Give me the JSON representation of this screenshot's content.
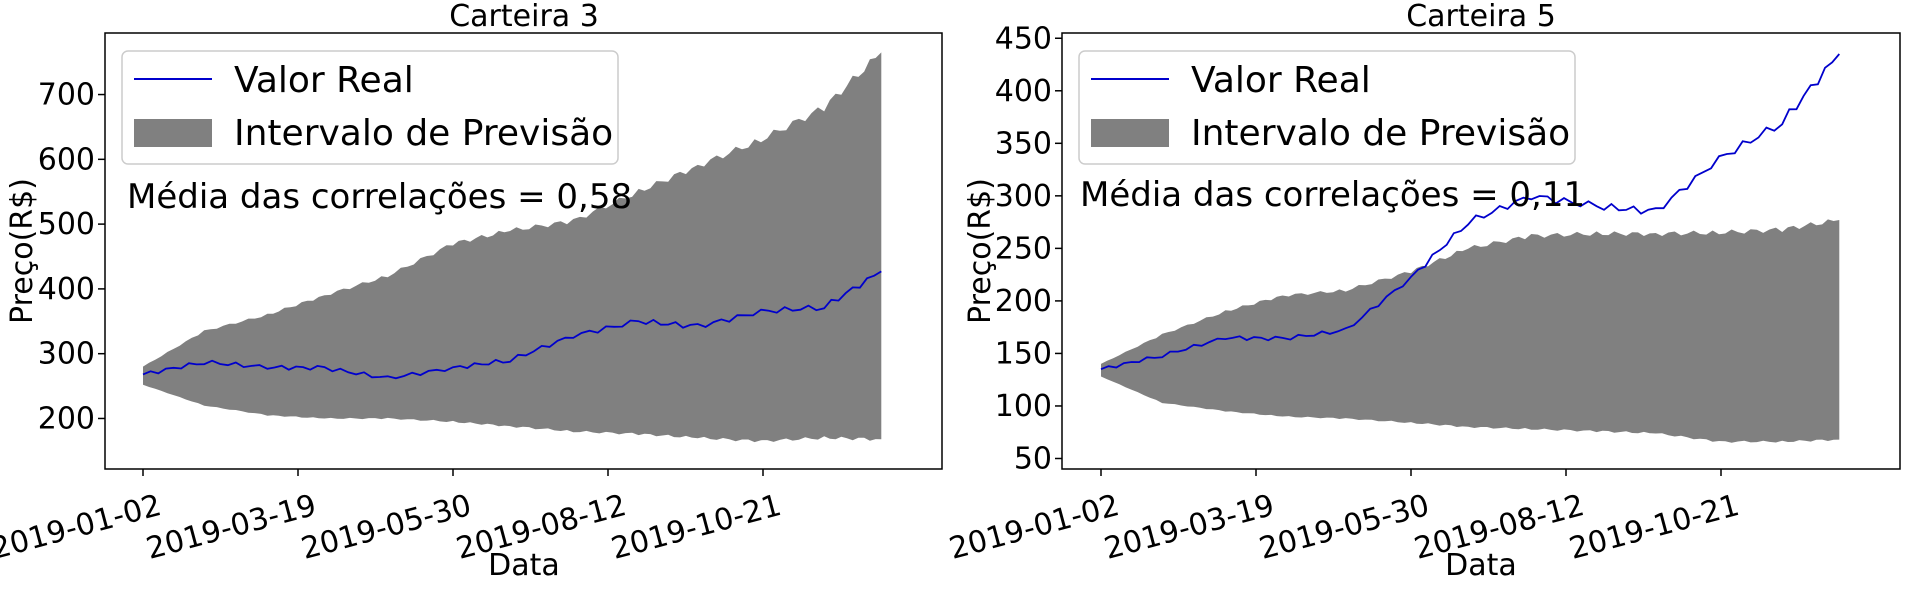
{
  "chart_data": [
    {
      "type": "line",
      "title": "Carteira 3",
      "xlabel": "Data",
      "ylabel": "Preço(R$)",
      "x_tick_labels": [
        "2019-01-02",
        "2019-03-19",
        "2019-05-30",
        "2019-08-12",
        "2019-10-21"
      ],
      "y_ticks": [
        200,
        300,
        400,
        500,
        600,
        700
      ],
      "ylim": [
        122,
        795
      ],
      "legend": {
        "placement": "upper-left",
        "entries": [
          "Valor Real",
          "Intervalo de Previsão"
        ]
      },
      "annotation": "Média das correlações = 0,58",
      "x": [
        "2019-01-02",
        "2019-02-01",
        "2019-03-04",
        "2019-04-01",
        "2019-05-02",
        "2019-06-03",
        "2019-07-01",
        "2019-08-01",
        "2019-09-02",
        "2019-10-01",
        "2019-11-01",
        "2019-12-02",
        "2019-12-30"
      ],
      "series": [
        {
          "name": "Valor Real",
          "kind": "line",
          "color": "#0000cc",
          "values": [
            268,
            287,
            279,
            278,
            262,
            278,
            290,
            328,
            350,
            342,
            365,
            372,
            427
          ]
        },
        {
          "name": "Intervalo de Previsão",
          "kind": "band",
          "color": "#808080",
          "upper": [
            280,
            335,
            360,
            390,
            420,
            470,
            490,
            505,
            550,
            590,
            630,
            680,
            765
          ],
          "lower": [
            252,
            220,
            205,
            200,
            200,
            195,
            188,
            180,
            176,
            170,
            165,
            170,
            168
          ]
        }
      ]
    },
    {
      "type": "line",
      "title": "Carteira 5",
      "xlabel": "Data",
      "ylabel": "Preço(R$)",
      "x_tick_labels": [
        "2019-01-02",
        "2019-03-19",
        "2019-05-30",
        "2019-08-12",
        "2019-10-21"
      ],
      "y_ticks": [
        50,
        100,
        150,
        200,
        250,
        300,
        350,
        400,
        450
      ],
      "ylim": [
        40,
        455
      ],
      "legend": {
        "placement": "upper-left",
        "entries": [
          "Valor Real",
          "Intervalo de Previsão"
        ]
      },
      "annotation": "Média das correlações = 0,11",
      "x": [
        "2019-01-02",
        "2019-02-01",
        "2019-03-04",
        "2019-04-01",
        "2019-05-02",
        "2019-06-03",
        "2019-07-01",
        "2019-08-01",
        "2019-09-02",
        "2019-10-01",
        "2019-11-01",
        "2019-12-02",
        "2019-12-30"
      ],
      "series": [
        {
          "name": "Valor Real",
          "kind": "line",
          "color": "#0000cc",
          "values": [
            135,
            148,
            165,
            164,
            172,
            222,
            275,
            300,
            290,
            285,
            335,
            370,
            435
          ]
        },
        {
          "name": "Intervalo de Previsão",
          "kind": "band",
          "color": "#808080",
          "upper": [
            140,
            168,
            190,
            205,
            210,
            228,
            250,
            262,
            264,
            264,
            265,
            268,
            277
          ]
        },
        {
          "kind": "band-lower",
          "lower": [
            128,
            103,
            95,
            90,
            88,
            84,
            80,
            78,
            76,
            74,
            66,
            66,
            68
          ]
        }
      ]
    }
  ]
}
